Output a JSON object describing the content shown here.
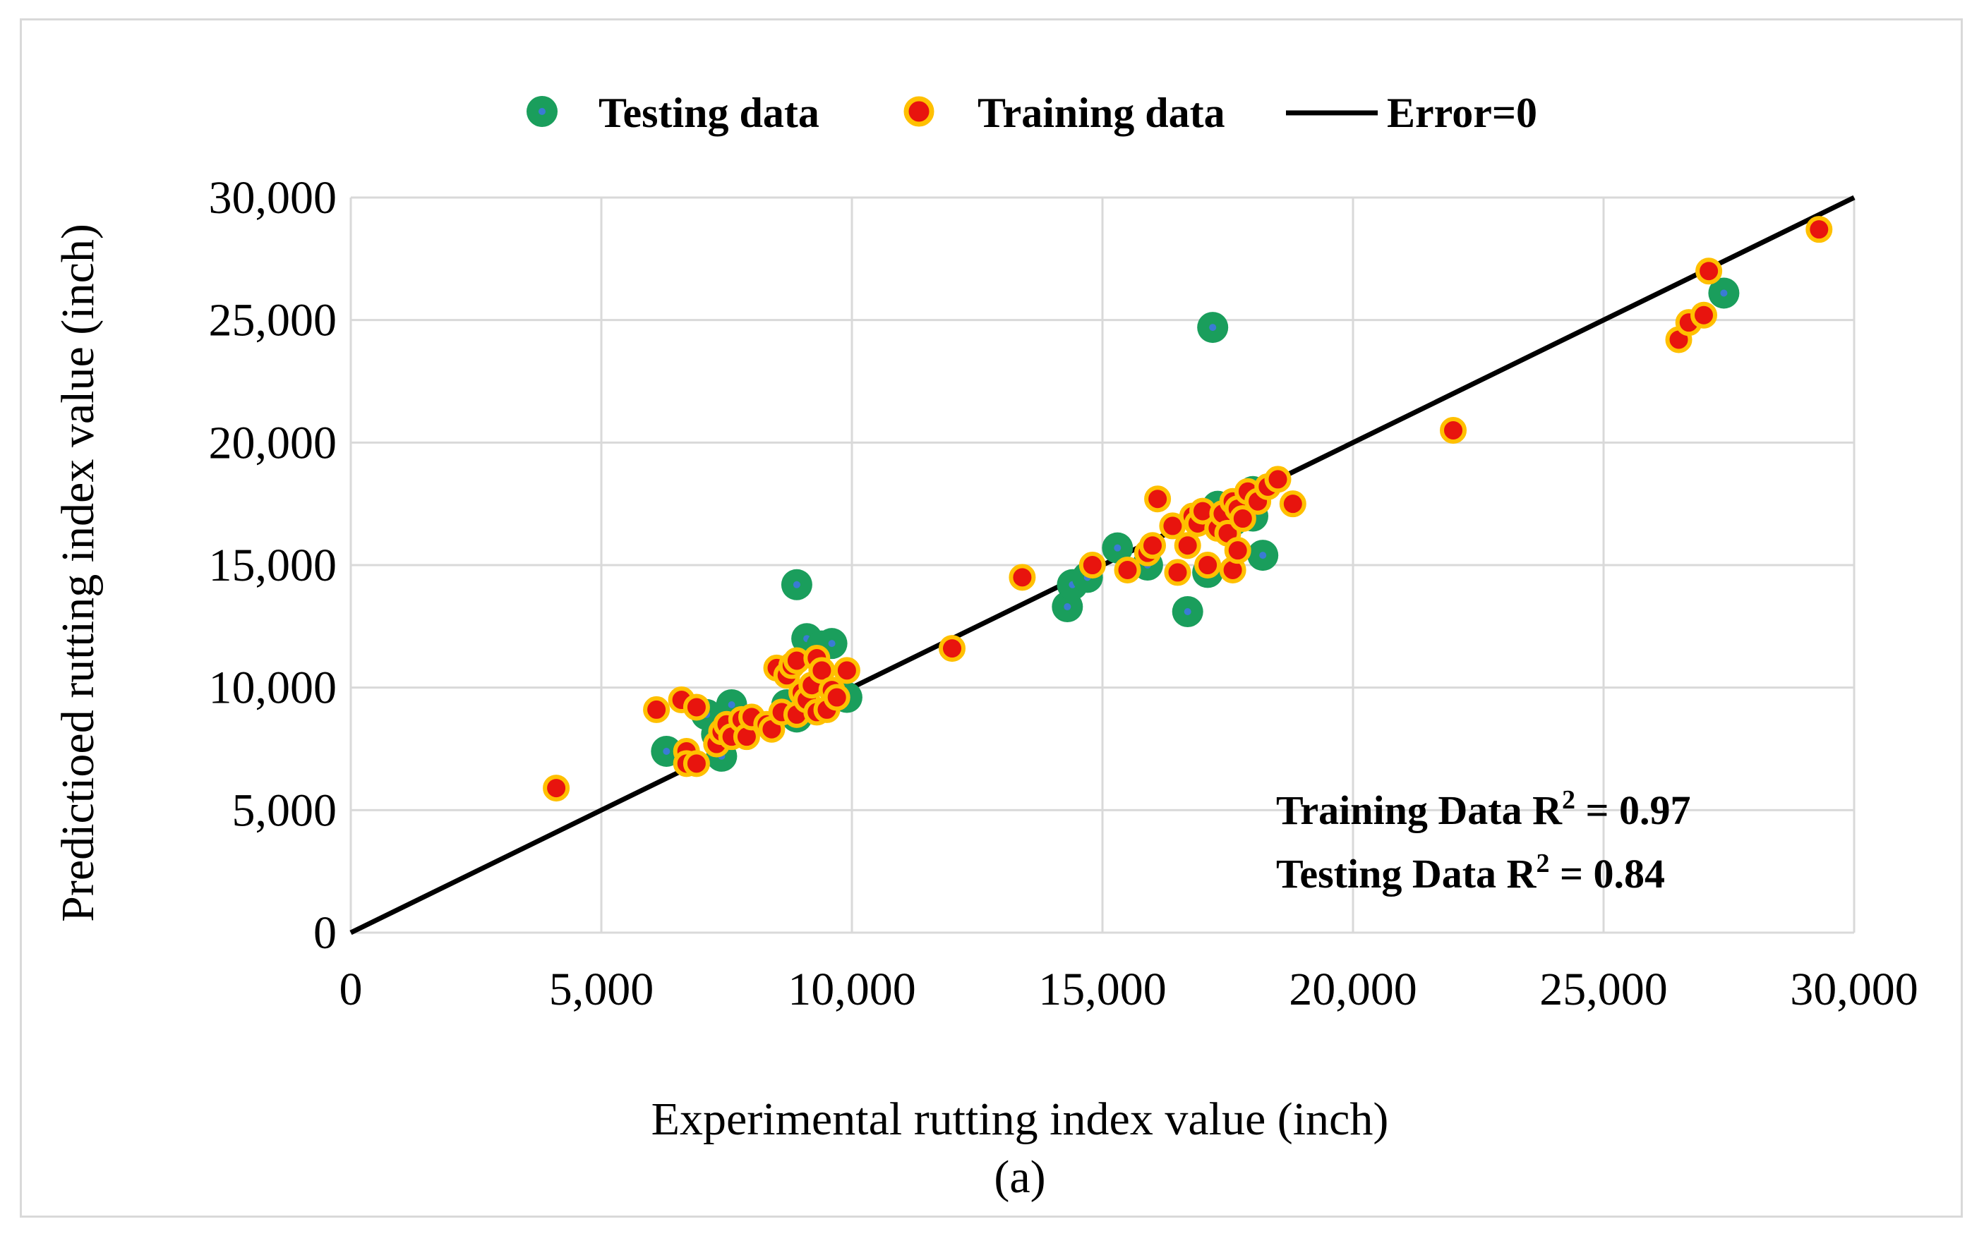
{
  "chart_data": {
    "type": "scatter",
    "title": "",
    "xlabel": "Experimental rutting index value (inch)",
    "ylabel": "Predictioed rutting index value (inch)",
    "caption": "(a)",
    "xlim": [
      0,
      30000
    ],
    "ylim": [
      0,
      30000
    ],
    "grid": true,
    "legend_position": "top-center",
    "x_ticks": [
      "0",
      "5,000",
      "10,000",
      "15,000",
      "20,000",
      "25,000",
      "30,000"
    ],
    "y_ticks": [
      "0",
      "5,000",
      "10,000",
      "15,000",
      "20,000",
      "25,000",
      "30,000"
    ],
    "x_tick_values": [
      0,
      5000,
      10000,
      15000,
      20000,
      25000,
      30000
    ],
    "y_tick_values": [
      0,
      5000,
      10000,
      15000,
      20000,
      25000,
      30000
    ],
    "legend": [
      "Testing data",
      "Training data",
      "Error=0"
    ],
    "annotations": {
      "training_prefix": "Training  Data R",
      "training_suffix": " = 0.97",
      "testing_prefix": "Testing Data R",
      "testing_suffix": " = 0.84",
      "superscript": "2"
    },
    "colors": {
      "testing_fill": "#1a9e5c",
      "testing_center": "#3a7bd5",
      "training_fill": "#e8140e",
      "training_edge": "#ffc000",
      "line": "#000000",
      "grid": "#d9d9d9"
    },
    "reference_line": {
      "name": "Error=0",
      "x": [
        0,
        30000
      ],
      "y": [
        0,
        30000
      ]
    },
    "series": [
      {
        "name": "Testing data",
        "marker": "testing",
        "points": [
          [
            6300,
            7400
          ],
          [
            7100,
            8900
          ],
          [
            7300,
            8100
          ],
          [
            7400,
            7200
          ],
          [
            7600,
            9300
          ],
          [
            8700,
            9300
          ],
          [
            8900,
            8800
          ],
          [
            8900,
            14200
          ],
          [
            9100,
            12000
          ],
          [
            9400,
            11700
          ],
          [
            9600,
            11800
          ],
          [
            9700,
            9700
          ],
          [
            9900,
            9600
          ],
          [
            14300,
            13300
          ],
          [
            14400,
            14200
          ],
          [
            14700,
            14500
          ],
          [
            15300,
            15700
          ],
          [
            15900,
            15000
          ],
          [
            16700,
            13100
          ],
          [
            17100,
            14700
          ],
          [
            17200,
            24700
          ],
          [
            17300,
            17400
          ],
          [
            17600,
            16800
          ],
          [
            18000,
            17000
          ],
          [
            18000,
            18000
          ],
          [
            18200,
            15400
          ],
          [
            27400,
            26100
          ]
        ]
      },
      {
        "name": "Training data",
        "marker": "training",
        "points": [
          [
            4100,
            5900
          ],
          [
            6100,
            9100
          ],
          [
            6600,
            9500
          ],
          [
            6700,
            7400
          ],
          [
            6700,
            6900
          ],
          [
            6900,
            9200
          ],
          [
            6900,
            6900
          ],
          [
            7300,
            7700
          ],
          [
            7400,
            8200
          ],
          [
            7500,
            8500
          ],
          [
            7600,
            8000
          ],
          [
            7800,
            8700
          ],
          [
            7900,
            8000
          ],
          [
            8000,
            8800
          ],
          [
            8300,
            8500
          ],
          [
            8400,
            8300
          ],
          [
            8500,
            10800
          ],
          [
            8600,
            9000
          ],
          [
            8700,
            10500
          ],
          [
            8800,
            10900
          ],
          [
            8900,
            11100
          ],
          [
            8900,
            8900
          ],
          [
            9000,
            9800
          ],
          [
            9100,
            9500
          ],
          [
            9200,
            10100
          ],
          [
            9300,
            11200
          ],
          [
            9300,
            9000
          ],
          [
            9400,
            10700
          ],
          [
            9500,
            9100
          ],
          [
            9600,
            9900
          ],
          [
            9700,
            9600
          ],
          [
            9900,
            10700
          ],
          [
            12000,
            11600
          ],
          [
            13400,
            14500
          ],
          [
            14800,
            15000
          ],
          [
            15500,
            14800
          ],
          [
            15900,
            15500
          ],
          [
            16000,
            15800
          ],
          [
            16100,
            17700
          ],
          [
            16400,
            16600
          ],
          [
            16500,
            14700
          ],
          [
            16700,
            15800
          ],
          [
            16800,
            17000
          ],
          [
            16900,
            16700
          ],
          [
            17000,
            17200
          ],
          [
            17100,
            15000
          ],
          [
            17300,
            16500
          ],
          [
            17400,
            17100
          ],
          [
            17500,
            16300
          ],
          [
            17600,
            17600
          ],
          [
            17600,
            14800
          ],
          [
            17700,
            15600
          ],
          [
            17700,
            17300
          ],
          [
            17800,
            16900
          ],
          [
            17900,
            18000
          ],
          [
            18100,
            17600
          ],
          [
            18300,
            18200
          ],
          [
            18500,
            18500
          ],
          [
            18800,
            17500
          ],
          [
            22000,
            20500
          ],
          [
            26500,
            24200
          ],
          [
            26700,
            24900
          ],
          [
            27000,
            25200
          ],
          [
            27100,
            27000
          ],
          [
            29300,
            28700
          ]
        ]
      }
    ]
  }
}
